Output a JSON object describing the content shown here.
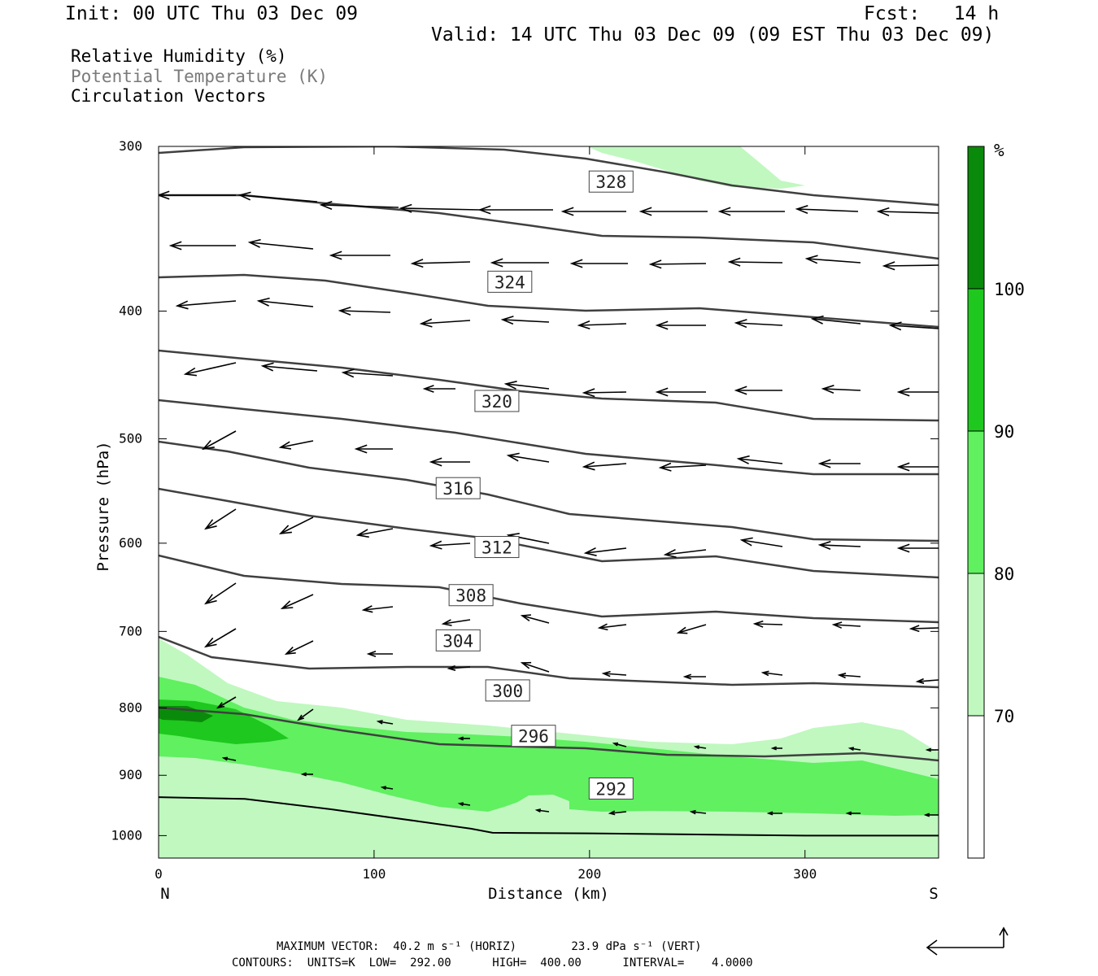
{
  "header": {
    "init": "Init: 00 UTC Thu 03 Dec 09",
    "fcst": "Fcst:   14 h",
    "valid": "Valid: 14 UTC Thu 03 Dec 09 (09 EST Thu 03 Dec 09)"
  },
  "variables": [
    {
      "label": "Relative Humidity (%)",
      "color": "#000000"
    },
    {
      "label": "Potential Temperature (K)",
      "color": "#7a7a7a"
    },
    {
      "label": "Circulation Vectors",
      "color": "#000000"
    }
  ],
  "chart_data": {
    "type": "cross-section",
    "xlabel": "Distance (km)",
    "ylabel": "Pressure (hPa)",
    "xlim": [
      0,
      362
    ],
    "ylim": [
      1040,
      300
    ],
    "y_scale": "log",
    "x_ticks": [
      0,
      100,
      200,
      300
    ],
    "y_ticks": [
      300,
      400,
      500,
      600,
      700,
      800,
      900,
      1000
    ],
    "x_end_labels": {
      "left": "N",
      "right": "S"
    },
    "rh_colorbar": {
      "unit": "%",
      "levels": [
        70,
        80,
        90,
        100
      ],
      "colors": [
        "#ffffff",
        "#c0f8c0",
        "#60f060",
        "#1ec81e",
        "#0a8a0a"
      ]
    },
    "theta_contours": {
      "labels": [
        {
          "value": "328",
          "x": 210,
          "p": 319
        },
        {
          "value": "324",
          "x": 163,
          "p": 380
        },
        {
          "value": "320",
          "x": 157,
          "p": 468
        },
        {
          "value": "316",
          "x": 139,
          "p": 545
        },
        {
          "value": "312",
          "x": 157,
          "p": 604
        },
        {
          "value": "308",
          "x": 145,
          "p": 657
        },
        {
          "value": "304",
          "x": 139,
          "p": 711
        },
        {
          "value": "300",
          "x": 162,
          "p": 776
        },
        {
          "value": "296",
          "x": 174,
          "p": 840
        },
        {
          "value": "292",
          "x": 210,
          "p": 921
        }
      ]
    },
    "surface_pressure": [
      [
        0,
        935
      ],
      [
        40,
        938
      ],
      [
        80,
        955
      ],
      [
        120,
        975
      ],
      [
        145,
        988
      ],
      [
        155,
        995
      ],
      [
        200,
        996
      ],
      [
        250,
        998
      ],
      [
        300,
        1000
      ],
      [
        362,
        1000
      ]
    ]
  },
  "footer": {
    "max_vector": "MAXIMUM VECTOR:  40.2 m s⁻¹ (HORIZ)        23.9 dPa s⁻¹ (VERT)",
    "contours": "CONTOURS:  UNITS=K  LOW=  292.00      HIGH=  400.00      INTERVAL=    4.0000"
  }
}
